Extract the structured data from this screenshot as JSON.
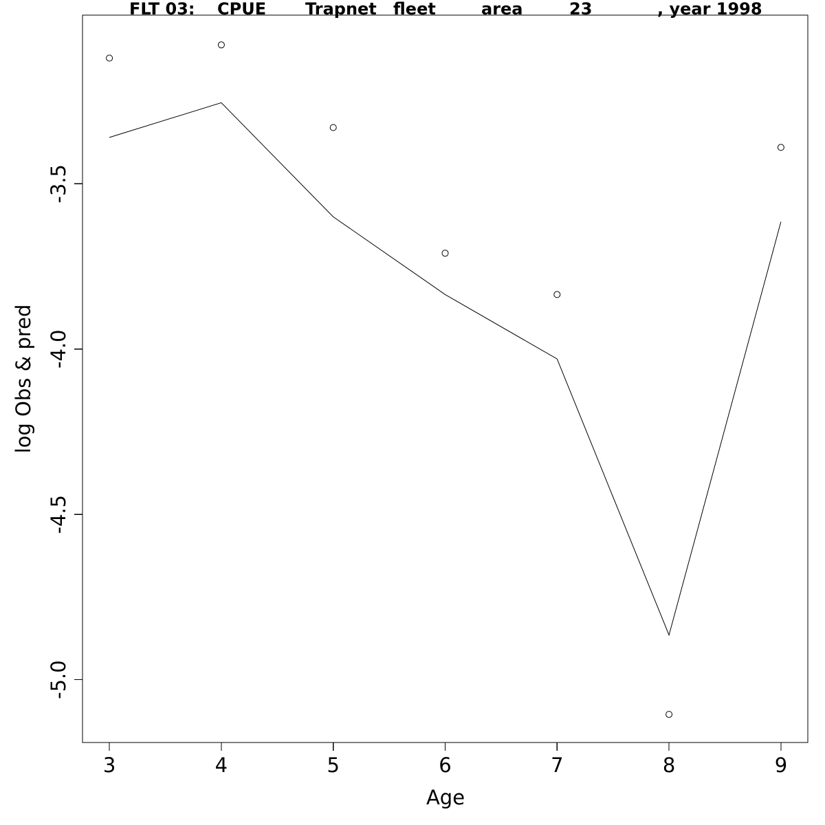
{
  "chart_data": {
    "type": "line",
    "title_parts": [
      "FLT 03:",
      "CPUE",
      "Trapnet",
      "fleet",
      "area",
      "23",
      ", year 1998"
    ],
    "xlabel": "Age",
    "ylabel": "log Obs & pred",
    "x_ticks": [
      3,
      4,
      5,
      6,
      7,
      8,
      9
    ],
    "x_tick_labels": [
      "3",
      "4",
      "5",
      "6",
      "7",
      "8",
      "9"
    ],
    "y_ticks": [
      -5.0,
      -4.5,
      -4.0,
      -3.5
    ],
    "y_tick_labels": [
      "-5.0",
      "-4.5",
      "-4.0",
      "-3.5"
    ],
    "xlim": [
      2.76,
      9.24
    ],
    "ylim": [
      -5.19,
      -2.99
    ],
    "grid": false,
    "series": [
      {
        "kind": "points",
        "x": [
          3,
          4,
          5,
          6,
          7,
          8,
          9
        ],
        "y": [
          -3.12,
          -3.08,
          -3.33,
          -3.71,
          -3.835,
          -5.105,
          -3.39
        ]
      },
      {
        "kind": "line",
        "x": [
          3,
          4,
          5,
          6,
          7,
          8,
          9
        ],
        "y": [
          -3.36,
          -3.255,
          -3.6,
          -3.835,
          -4.03,
          -4.865,
          -3.615
        ]
      }
    ]
  }
}
